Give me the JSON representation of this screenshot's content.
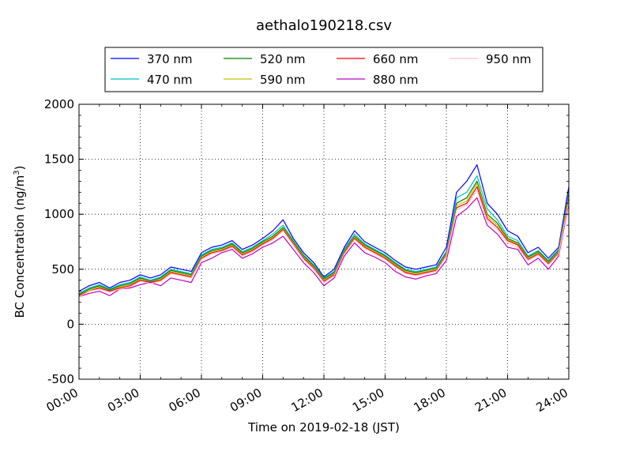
{
  "chart_data": {
    "type": "line",
    "title": "aethalo190218.csv",
    "xlabel": "Time on 2019-02-18 (JST)",
    "ylabel_main": "BC Concentration (ng/m",
    "ylabel_sup": "3",
    "ylabel_close": ")",
    "xlim": [
      "00:00",
      "24:00"
    ],
    "ylim": [
      -500,
      2000
    ],
    "x_ticks": [
      "00:00",
      "03:00",
      "06:00",
      "09:00",
      "12:00",
      "15:00",
      "18:00",
      "21:00",
      "24:00"
    ],
    "y_ticks": [
      -500,
      0,
      500,
      1000,
      1500,
      2000
    ],
    "grid": true,
    "legend_position": "top-center",
    "x": [
      "00:00",
      "00:30",
      "01:00",
      "01:30",
      "02:00",
      "02:30",
      "03:00",
      "03:30",
      "04:00",
      "04:30",
      "05:00",
      "05:30",
      "06:00",
      "06:30",
      "07:00",
      "07:30",
      "08:00",
      "08:30",
      "09:00",
      "09:30",
      "10:00",
      "10:30",
      "11:00",
      "11:30",
      "12:00",
      "12:30",
      "13:00",
      "13:30",
      "14:00",
      "14:30",
      "15:00",
      "15:30",
      "16:00",
      "16:30",
      "17:00",
      "17:30",
      "18:00",
      "18:30",
      "19:00",
      "19:30",
      "20:00",
      "20:30",
      "21:00",
      "21:30",
      "22:00",
      "22:30",
      "23:00",
      "23:30",
      "24:00"
    ],
    "series": [
      {
        "name": "370 nm",
        "color": "#0000ff",
        "values": [
          300,
          350,
          380,
          330,
          380,
          400,
          450,
          420,
          450,
          520,
          500,
          480,
          650,
          700,
          720,
          760,
          680,
          720,
          780,
          850,
          950,
          780,
          650,
          560,
          430,
          500,
          700,
          850,
          750,
          700,
          650,
          580,
          520,
          500,
          520,
          540,
          700,
          1200,
          1300,
          1450,
          1100,
          1000,
          850,
          800,
          650,
          700,
          600,
          700,
          1250
        ]
      },
      {
        "name": "470 nm",
        "color": "#00bfbf",
        "values": [
          280,
          330,
          360,
          320,
          360,
          380,
          430,
          400,
          430,
          500,
          480,
          460,
          630,
          680,
          700,
          740,
          660,
          700,
          760,
          820,
          900,
          760,
          630,
          540,
          420,
          480,
          680,
          820,
          730,
          680,
          630,
          560,
          500,
          480,
          500,
          520,
          660,
          1150,
          1200,
          1350,
          1050,
          950,
          800,
          760,
          620,
          670,
          580,
          680,
          1200
        ]
      },
      {
        "name": "520 nm",
        "color": "#008000",
        "values": [
          270,
          320,
          350,
          310,
          350,
          370,
          420,
          390,
          420,
          490,
          470,
          450,
          620,
          670,
          690,
          730,
          650,
          690,
          750,
          800,
          880,
          750,
          620,
          530,
          410,
          470,
          670,
          800,
          720,
          670,
          620,
          550,
          490,
          470,
          490,
          510,
          650,
          1100,
          1150,
          1300,
          1000,
          920,
          780,
          740,
          610,
          660,
          570,
          670,
          1180
        ]
      },
      {
        "name": "590 nm",
        "color": "#bfbf00",
        "values": [
          260,
          310,
          340,
          300,
          340,
          360,
          410,
          380,
          410,
          480,
          460,
          440,
          610,
          660,
          680,
          720,
          640,
          680,
          740,
          790,
          870,
          740,
          610,
          520,
          400,
          460,
          660,
          790,
          710,
          660,
          610,
          540,
          480,
          460,
          480,
          500,
          640,
          1080,
          1120,
          1280,
          980,
          900,
          770,
          730,
          600,
          650,
          560,
          660,
          1160
        ]
      },
      {
        "name": "660 nm",
        "color": "#ff0000",
        "values": [
          260,
          300,
          330,
          300,
          330,
          350,
          400,
          380,
          400,
          470,
          450,
          430,
          600,
          650,
          670,
          710,
          630,
          670,
          730,
          780,
          860,
          730,
          600,
          510,
          390,
          450,
          650,
          780,
          700,
          650,
          600,
          530,
          470,
          450,
          470,
          490,
          630,
          1060,
          1100,
          1250,
          960,
          880,
          760,
          720,
          590,
          640,
          550,
          650,
          1140
        ]
      },
      {
        "name": "880 nm",
        "color": "#bf00bf",
        "values": [
          250,
          280,
          300,
          260,
          320,
          330,
          360,
          380,
          350,
          420,
          400,
          380,
          560,
          600,
          650,
          680,
          600,
          640,
          700,
          740,
          800,
          680,
          560,
          470,
          350,
          420,
          620,
          740,
          650,
          610,
          560,
          480,
          430,
          410,
          440,
          460,
          580,
          980,
          1050,
          1150,
          900,
          820,
          700,
          680,
          540,
          600,
          500,
          620,
          1100
        ]
      },
      {
        "name": "950 nm",
        "color": "#ffc0cb",
        "values": [
          250,
          300,
          320,
          290,
          320,
          340,
          390,
          370,
          390,
          460,
          440,
          420,
          590,
          640,
          660,
          700,
          620,
          660,
          720,
          770,
          850,
          720,
          590,
          500,
          380,
          440,
          640,
          770,
          690,
          640,
          590,
          520,
          460,
          440,
          460,
          480,
          620,
          1040,
          1080,
          1220,
          940,
          860,
          740,
          700,
          580,
          630,
          540,
          640,
          1120
        ]
      }
    ]
  }
}
